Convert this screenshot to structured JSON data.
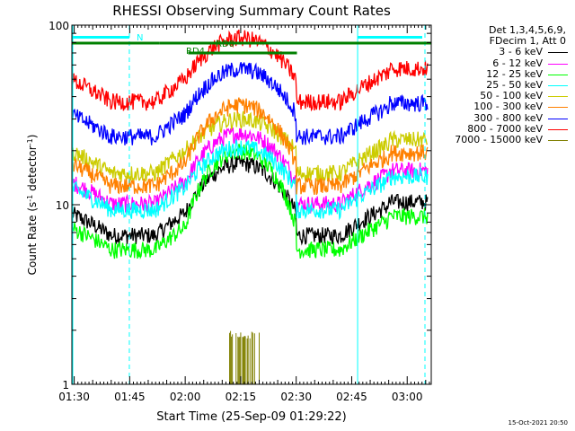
{
  "chart_data": {
    "type": "line",
    "title": "RHESSI Observing Summary Count Rates",
    "xlabel": "Start Time (25-Sep-09 01:29:22)",
    "ylabel_main": "Count Rate (s",
    "ylabel_sup1": "-1",
    "ylabel_mid": " detector",
    "ylabel_sup2": "-1",
    "ylabel_end": ")",
    "y_scale": "log",
    "ylim": [
      1,
      100
    ],
    "y_ticks": [
      "1",
      "10",
      "100"
    ],
    "x_range_minutes": [
      89.37,
      186.5
    ],
    "x_ticks": [
      {
        "label": "01:30",
        "m": 90
      },
      {
        "label": "01:45",
        "m": 105
      },
      {
        "label": "02:00",
        "m": 120
      },
      {
        "label": "02:15",
        "m": 135
      },
      {
        "label": "02:30",
        "m": 150
      },
      {
        "label": "02:45",
        "m": 165
      },
      {
        "label": "03:00",
        "m": 180
      }
    ],
    "legend_header": [
      "Det 1,3,4,5,6,9,",
      "FDecim 1, Att 0"
    ],
    "series": [
      {
        "name": "3 - 6 keV",
        "color": "#000000",
        "night": 9.0,
        "peak": 17
      },
      {
        "name": "6 - 12 keV",
        "color": "#ff00ff",
        "night": 13.5,
        "peak": 25
      },
      {
        "name": "12 - 25 keV",
        "color": "#00ff00",
        "night": 7.5,
        "peak": 20
      },
      {
        "name": "25 - 50 keV",
        "color": "#00ffff",
        "night": 12.5,
        "peak": 21
      },
      {
        "name": "50 - 100 keV",
        "color": "#cccc00",
        "night": 20,
        "peak": 30
      },
      {
        "name": "100 - 300 keV",
        "color": "#ff8000",
        "night": 17,
        "peak": 36
      },
      {
        "name": "300 - 800 keV",
        "color": "#0000ff",
        "night": 32,
        "peak": 57
      },
      {
        "name": "800 - 7000 keV",
        "color": "#ff0000",
        "night": 50,
        "peak": 85
      },
      {
        "name": "7000 - 15000 keV",
        "color": "#808000",
        "night": 0,
        "peak": 1.8
      }
    ],
    "annotations": [
      {
        "label": "N",
        "color": "#00ffff"
      },
      {
        "label": "RD4",
        "color": "#008000"
      },
      {
        "label": "RD0",
        "color": "#008000"
      }
    ],
    "timestamp": "15-Oct-2021 20:50"
  }
}
